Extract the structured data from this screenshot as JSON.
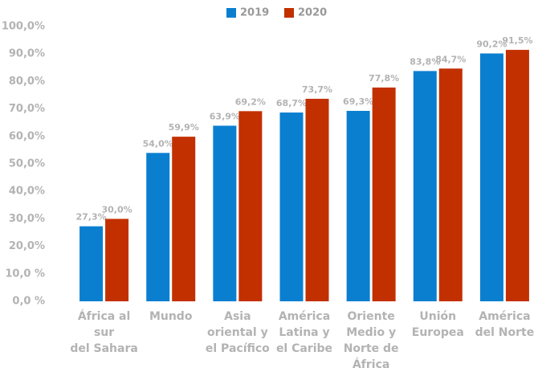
{
  "chart_data": {
    "type": "bar",
    "categories": [
      "África al sur\ndel Sahara",
      "Mundo",
      "Asia\noriental y\nel Pacífico",
      "América\nLatina y\nel Caribe",
      "Oriente\nMedio y\nNorte de\nÁfrica",
      "Unión\nEuropea",
      "América\ndel Norte"
    ],
    "series": [
      {
        "name": "2019",
        "color": "#0a7fd0",
        "values": [
          27.3,
          54.0,
          63.9,
          68.7,
          69.3,
          83.8,
          90.2
        ],
        "value_labels": [
          "27,3%",
          "54,0%",
          "63,9%",
          "68,7%",
          "69,3%",
          "83,8%",
          "90,2%"
        ]
      },
      {
        "name": "2020",
        "color": "#c23000",
        "values": [
          30.0,
          59.9,
          69.2,
          73.7,
          77.8,
          84.7,
          91.5
        ],
        "value_labels": [
          "30,0%",
          "59,9%",
          "69,2%",
          "73,7%",
          "77,8%",
          "84,7%",
          "91,5%"
        ]
      }
    ],
    "ylim": [
      0,
      100
    ],
    "yticks": [
      {
        "value": 0,
        "label": "0,0 %"
      },
      {
        "value": 10,
        "label": "10,0 %"
      },
      {
        "value": 20,
        "label": "20,0%"
      },
      {
        "value": 30,
        "label": "30,0%"
      },
      {
        "value": 40,
        "label": "40,0%"
      },
      {
        "value": 50,
        "label": "50,0%"
      },
      {
        "value": 60,
        "label": "60,0%"
      },
      {
        "value": 70,
        "label": "70,0%"
      },
      {
        "value": 80,
        "label": "80,0%"
      },
      {
        "value": 90,
        "label": "90,0%"
      },
      {
        "value": 100,
        "label": "100,0%"
      }
    ],
    "grid": false,
    "legend": "top"
  }
}
